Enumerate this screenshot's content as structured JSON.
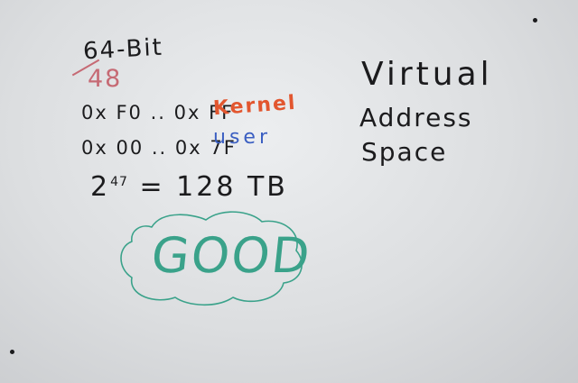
{
  "whiteboard": {
    "heading": "64-Bit",
    "crossed_number": "48",
    "ranges": {
      "kernel_range": "0x F0 .. 0x FF",
      "kernel_label": "Kernel",
      "user_range": "0x 00 .. 0x 7F",
      "user_label": "user"
    },
    "equation": {
      "base": "2",
      "exponent": "47",
      "result": "= 128 TB"
    },
    "virtual_address_space": {
      "line1": "Virtual",
      "line2": "Address",
      "line3": "Space"
    },
    "cloud_text": "GOOD"
  },
  "colors": {
    "black_marker": "#1b1b1d",
    "red_marker": "#e2562f",
    "blue_marker": "#3b5fc2",
    "pink_marker": "#c66a74",
    "green_marker": "#3aa28a"
  }
}
